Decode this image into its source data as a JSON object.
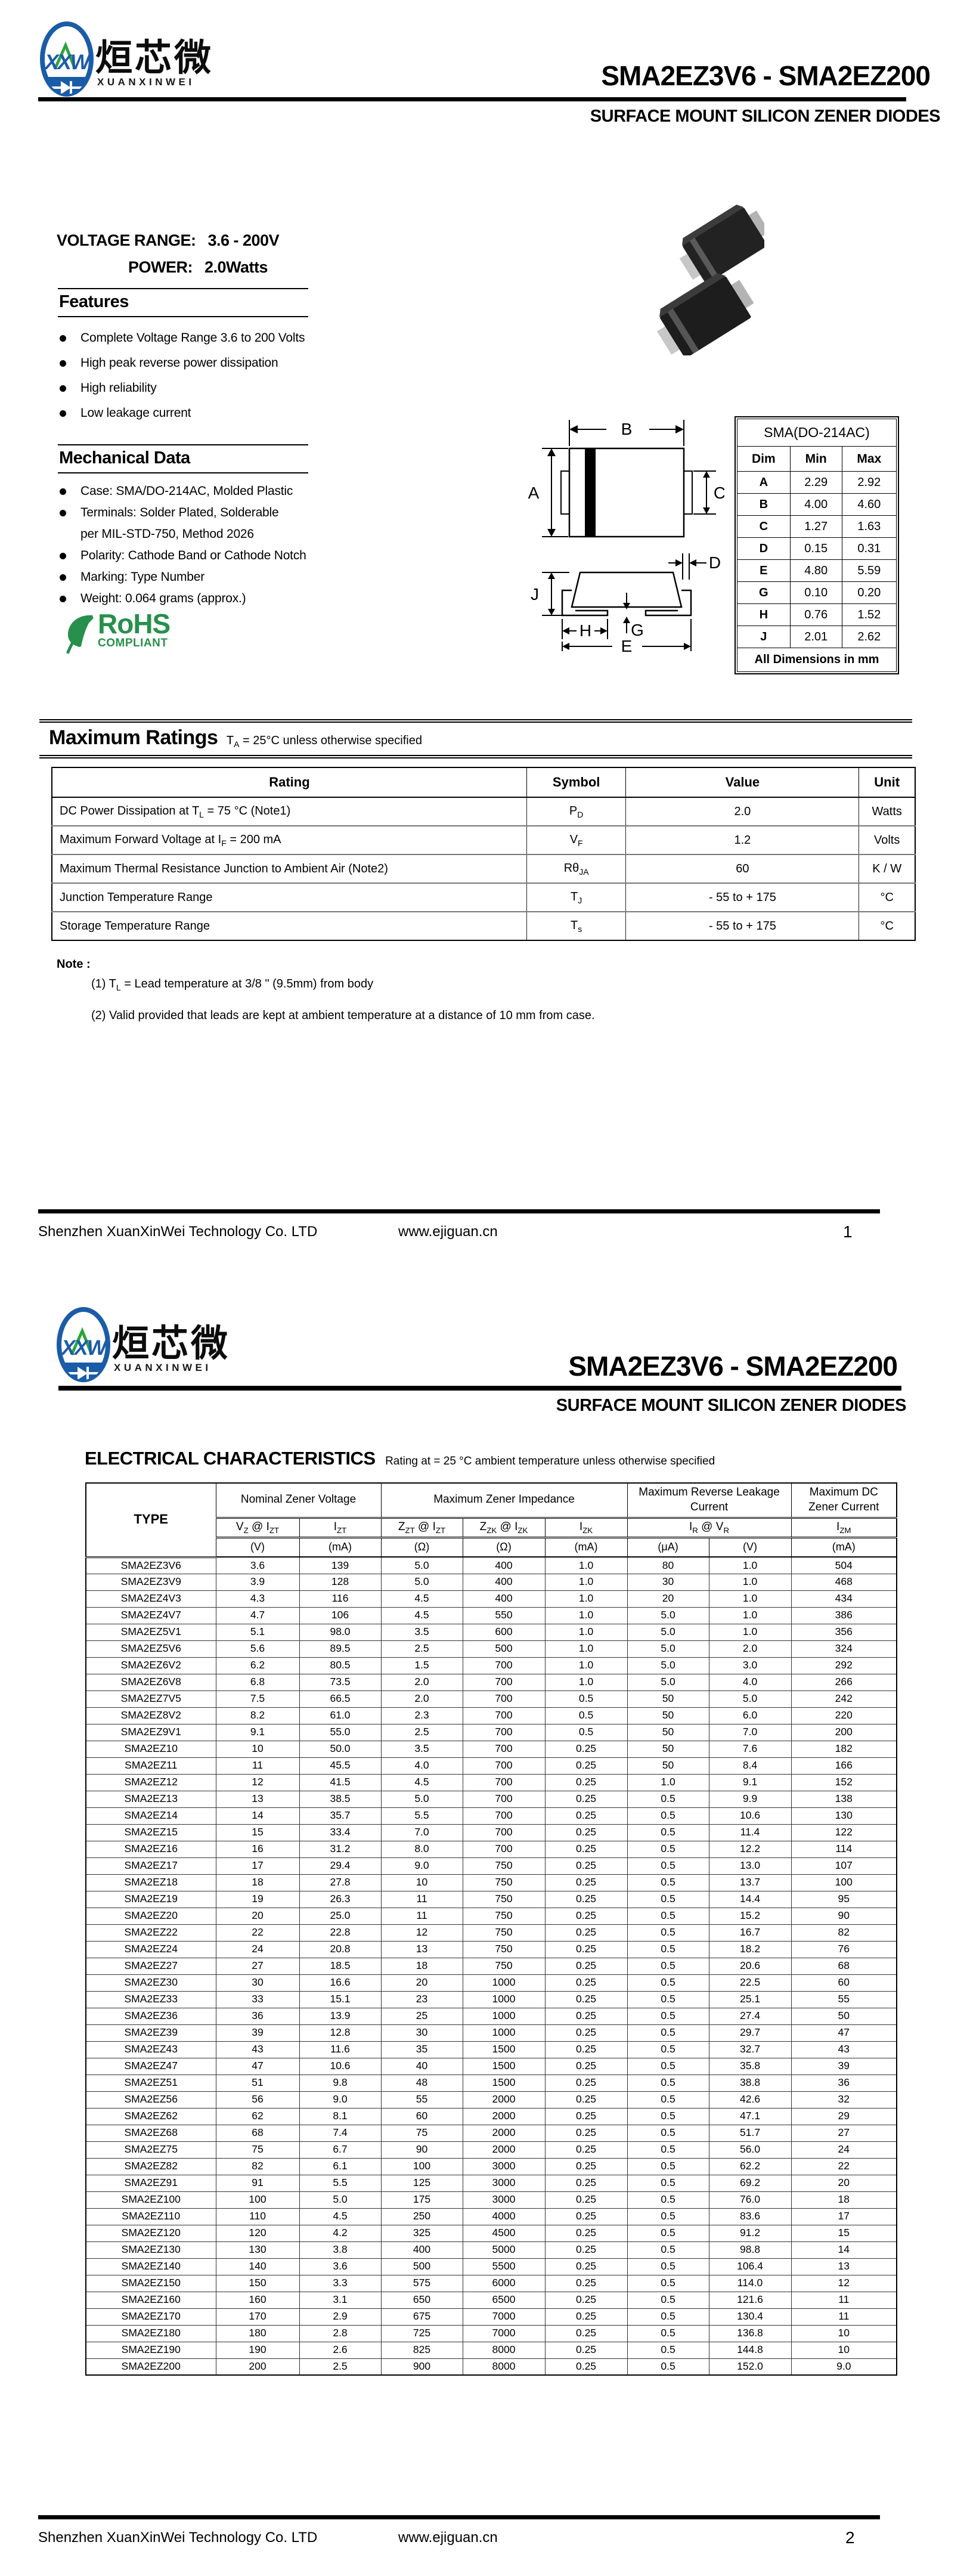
{
  "colors": {
    "logo_blue": "#1b5ca8",
    "logo_green": "#2ea43c",
    "rohs_green": "#27904c",
    "ink": "#000000"
  },
  "brand": {
    "logo_text": "XXW",
    "cn_name": "烜芯微",
    "en_name": "XUANXINWEI"
  },
  "doc": {
    "title": "SMA2EZ3V6 - SMA2EZ200",
    "subtitle": "SURFACE MOUNT SILICON ZENER DIODES"
  },
  "page1": {
    "voltage_label": "VOLTAGE  RANGE:",
    "voltage_value": "3.6 - 200V",
    "power_label": "POWER:",
    "power_value": "2.0Watts",
    "features": {
      "heading": "Features",
      "items": [
        "Complete Voltage Range 3.6 to 200 Volts",
        "High peak reverse power dissipation",
        "High reliability",
        "Low leakage current"
      ]
    },
    "mechanical": {
      "heading": "Mechanical Data",
      "items": [
        "Case: SMA/DO-214AC, Molded Plastic",
        "Terminals: Solder Plated, Solderable",
        "per MIL-STD-750, Method 2026",
        "Polarity: Cathode Band or Cathode Notch",
        "Marking: Type Number",
        "Weight: 0.064 grams (approx.)"
      ]
    },
    "rohs": {
      "line1": "RoHS",
      "line2": "COMPLIANT"
    },
    "drawing": {
      "labels": [
        "A",
        "B",
        "C",
        "D",
        "E",
        "G",
        "H",
        "J"
      ]
    },
    "dims": {
      "title": "SMA(DO-214AC)",
      "headers": [
        "Dim",
        "Min",
        "Max"
      ],
      "rows": [
        [
          "A",
          "2.29",
          "2.92"
        ],
        [
          "B",
          "4.00",
          "4.60"
        ],
        [
          "C",
          "1.27",
          "1.63"
        ],
        [
          "D",
          "0.15",
          "0.31"
        ],
        [
          "E",
          "4.80",
          "5.59"
        ],
        [
          "G",
          "0.10",
          "0.20"
        ],
        [
          "H",
          "0.76",
          "1.52"
        ],
        [
          "J",
          "2.01",
          "2.62"
        ]
      ],
      "footer": "All Dimensions in mm"
    },
    "max_ratings": {
      "heading": "Maximum Ratings",
      "condition": "T|A| = 25°C unless otherwise specified",
      "headers": [
        "Rating",
        "Symbol",
        "Value",
        "Unit"
      ],
      "rows": [
        [
          "DC Power Dissipation at T|L| = 75 °C (Note1)",
          "P|D|",
          "2.0",
          "Watts"
        ],
        [
          "Maximum Forward Voltage at I|F| = 200 mA",
          "V|F|",
          "1.2",
          "Volts"
        ],
        [
          "Maximum Thermal Resistance Junction to Ambient Air (Note2)",
          "Rθ|JA|",
          "60",
          "K / W"
        ],
        [
          "Junction Temperature Range",
          "T|J|",
          "- 55 to + 175",
          "°C"
        ],
        [
          "Storage Temperature Range",
          "T|s|",
          "- 55 to + 175",
          "°C"
        ]
      ]
    },
    "note": {
      "label": "Note :",
      "items": [
        "(1) T|L| = Lead temperature at 3/8 \" (9.5mm) from body",
        "(2) Valid provided that leads are kept at ambient temperature at a distance of 10 mm from case."
      ]
    },
    "footer": {
      "company": "Shenzhen XuanXinWei Technology Co. LTD",
      "website": "www.ejiguan.cn",
      "page": "1"
    }
  },
  "page2": {
    "electrical": {
      "heading": "ELECTRICAL CHARACTERISTICS",
      "condition": "Rating at  = 25 °C ambient temperature unless otherwise specified",
      "type_label": "TYPE",
      "group_headers": [
        "Nominal Zener Voltage",
        "Maximum Zener Impedance",
        "Maximum Reverse Leakage Current",
        "Maximum DC Zener Current"
      ],
      "sub_headers": [
        "V|Z| @ I|ZT|",
        "I|ZT|",
        "Z|ZT| @ I|ZT|",
        "Z|ZK| @ I|ZK|",
        "I|ZK|",
        "I|R|   @   V|R|",
        "I|ZM|"
      ],
      "unit_headers": [
        "(V)",
        "(mA)",
        "(Ω)",
        "(Ω)",
        "(mA)",
        "(μA)",
        "(V)",
        "(mA)"
      ],
      "rows": [
        [
          "SMA2EZ3V6",
          "3.6",
          "139",
          "5.0",
          "400",
          "1.0",
          "80",
          "1.0",
          "504"
        ],
        [
          "SMA2EZ3V9",
          "3.9",
          "128",
          "5.0",
          "400",
          "1.0",
          "30",
          "1.0",
          "468"
        ],
        [
          "SMA2EZ4V3",
          "4.3",
          "116",
          "4.5",
          "400",
          "1.0",
          "20",
          "1.0",
          "434"
        ],
        [
          "SMA2EZ4V7",
          "4.7",
          "106",
          "4.5",
          "550",
          "1.0",
          "5.0",
          "1.0",
          "386"
        ],
        [
          "SMA2EZ5V1",
          "5.1",
          "98.0",
          "3.5",
          "600",
          "1.0",
          "5.0",
          "1.0",
          "356"
        ],
        [
          "SMA2EZ5V6",
          "5.6",
          "89.5",
          "2.5",
          "500",
          "1.0",
          "5.0",
          "2.0",
          "324"
        ],
        [
          "SMA2EZ6V2",
          "6.2",
          "80.5",
          "1.5",
          "700",
          "1.0",
          "5.0",
          "3.0",
          "292"
        ],
        [
          "SMA2EZ6V8",
          "6.8",
          "73.5",
          "2.0",
          "700",
          "1.0",
          "5.0",
          "4.0",
          "266"
        ],
        [
          "SMA2EZ7V5",
          "7.5",
          "66.5",
          "2.0",
          "700",
          "0.5",
          "50",
          "5.0",
          "242"
        ],
        [
          "SMA2EZ8V2",
          "8.2",
          "61.0",
          "2.3",
          "700",
          "0.5",
          "50",
          "6.0",
          "220"
        ],
        [
          "SMA2EZ9V1",
          "9.1",
          "55.0",
          "2.5",
          "700",
          "0.5",
          "50",
          "7.0",
          "200"
        ],
        [
          "SMA2EZ10",
          "10",
          "50.0",
          "3.5",
          "700",
          "0.25",
          "50",
          "7.6",
          "182"
        ],
        [
          "SMA2EZ11",
          "11",
          "45.5",
          "4.0",
          "700",
          "0.25",
          "50",
          "8.4",
          "166"
        ],
        [
          "SMA2EZ12",
          "12",
          "41.5",
          "4.5",
          "700",
          "0.25",
          "1.0",
          "9.1",
          "152"
        ],
        [
          "SMA2EZ13",
          "13",
          "38.5",
          "5.0",
          "700",
          "0.25",
          "0.5",
          "9.9",
          "138"
        ],
        [
          "SMA2EZ14",
          "14",
          "35.7",
          "5.5",
          "700",
          "0.25",
          "0.5",
          "10.6",
          "130"
        ],
        [
          "SMA2EZ15",
          "15",
          "33.4",
          "7.0",
          "700",
          "0.25",
          "0.5",
          "11.4",
          "122"
        ],
        [
          "SMA2EZ16",
          "16",
          "31.2",
          "8.0",
          "700",
          "0.25",
          "0.5",
          "12.2",
          "114"
        ],
        [
          "SMA2EZ17",
          "17",
          "29.4",
          "9.0",
          "750",
          "0.25",
          "0.5",
          "13.0",
          "107"
        ],
        [
          "SMA2EZ18",
          "18",
          "27.8",
          "10",
          "750",
          "0.25",
          "0.5",
          "13.7",
          "100"
        ],
        [
          "SMA2EZ19",
          "19",
          "26.3",
          "11",
          "750",
          "0.25",
          "0.5",
          "14.4",
          "95"
        ],
        [
          "SMA2EZ20",
          "20",
          "25.0",
          "11",
          "750",
          "0.25",
          "0.5",
          "15.2",
          "90"
        ],
        [
          "SMA2EZ22",
          "22",
          "22.8",
          "12",
          "750",
          "0.25",
          "0.5",
          "16.7",
          "82"
        ],
        [
          "SMA2EZ24",
          "24",
          "20.8",
          "13",
          "750",
          "0.25",
          "0.5",
          "18.2",
          "76"
        ],
        [
          "SMA2EZ27",
          "27",
          "18.5",
          "18",
          "750",
          "0.25",
          "0.5",
          "20.6",
          "68"
        ],
        [
          "SMA2EZ30",
          "30",
          "16.6",
          "20",
          "1000",
          "0.25",
          "0.5",
          "22.5",
          "60"
        ],
        [
          "SMA2EZ33",
          "33",
          "15.1",
          "23",
          "1000",
          "0.25",
          "0.5",
          "25.1",
          "55"
        ],
        [
          "SMA2EZ36",
          "36",
          "13.9",
          "25",
          "1000",
          "0.25",
          "0.5",
          "27.4",
          "50"
        ],
        [
          "SMA2EZ39",
          "39",
          "12.8",
          "30",
          "1000",
          "0.25",
          "0.5",
          "29.7",
          "47"
        ],
        [
          "SMA2EZ43",
          "43",
          "11.6",
          "35",
          "1500",
          "0.25",
          "0.5",
          "32.7",
          "43"
        ],
        [
          "SMA2EZ47",
          "47",
          "10.6",
          "40",
          "1500",
          "0.25",
          "0.5",
          "35.8",
          "39"
        ],
        [
          "SMA2EZ51",
          "51",
          "9.8",
          "48",
          "1500",
          "0.25",
          "0.5",
          "38.8",
          "36"
        ],
        [
          "SMA2EZ56",
          "56",
          "9.0",
          "55",
          "2000",
          "0.25",
          "0.5",
          "42.6",
          "32"
        ],
        [
          "SMA2EZ62",
          "62",
          "8.1",
          "60",
          "2000",
          "0.25",
          "0.5",
          "47.1",
          "29"
        ],
        [
          "SMA2EZ68",
          "68",
          "7.4",
          "75",
          "2000",
          "0.25",
          "0.5",
          "51.7",
          "27"
        ],
        [
          "SMA2EZ75",
          "75",
          "6.7",
          "90",
          "2000",
          "0.25",
          "0.5",
          "56.0",
          "24"
        ],
        [
          "SMA2EZ82",
          "82",
          "6.1",
          "100",
          "3000",
          "0.25",
          "0.5",
          "62.2",
          "22"
        ],
        [
          "SMA2EZ91",
          "91",
          "5.5",
          "125",
          "3000",
          "0.25",
          "0.5",
          "69.2",
          "20"
        ],
        [
          "SMA2EZ100",
          "100",
          "5.0",
          "175",
          "3000",
          "0.25",
          "0.5",
          "76.0",
          "18"
        ],
        [
          "SMA2EZ110",
          "110",
          "4.5",
          "250",
          "4000",
          "0.25",
          "0.5",
          "83.6",
          "17"
        ],
        [
          "SMA2EZ120",
          "120",
          "4.2",
          "325",
          "4500",
          "0.25",
          "0.5",
          "91.2",
          "15"
        ],
        [
          "SMA2EZ130",
          "130",
          "3.8",
          "400",
          "5000",
          "0.25",
          "0.5",
          "98.8",
          "14"
        ],
        [
          "SMA2EZ140",
          "140",
          "3.6",
          "500",
          "5500",
          "0.25",
          "0.5",
          "106.4",
          "13"
        ],
        [
          "SMA2EZ150",
          "150",
          "3.3",
          "575",
          "6000",
          "0.25",
          "0.5",
          "114.0",
          "12"
        ],
        [
          "SMA2EZ160",
          "160",
          "3.1",
          "650",
          "6500",
          "0.25",
          "0.5",
          "121.6",
          "11"
        ],
        [
          "SMA2EZ170",
          "170",
          "2.9",
          "675",
          "7000",
          "0.25",
          "0.5",
          "130.4",
          "11"
        ],
        [
          "SMA2EZ180",
          "180",
          "2.8",
          "725",
          "7000",
          "0.25",
          "0.5",
          "136.8",
          "10"
        ],
        [
          "SMA2EZ190",
          "190",
          "2.6",
          "825",
          "8000",
          "0.25",
          "0.5",
          "144.8",
          "10"
        ],
        [
          "SMA2EZ200",
          "200",
          "2.5",
          "900",
          "8000",
          "0.25",
          "0.5",
          "152.0",
          "9.0"
        ]
      ]
    },
    "footer": {
      "company": "Shenzhen XuanXinWei Technology Co. LTD",
      "website": "www.ejiguan.cn",
      "page": "2"
    }
  }
}
